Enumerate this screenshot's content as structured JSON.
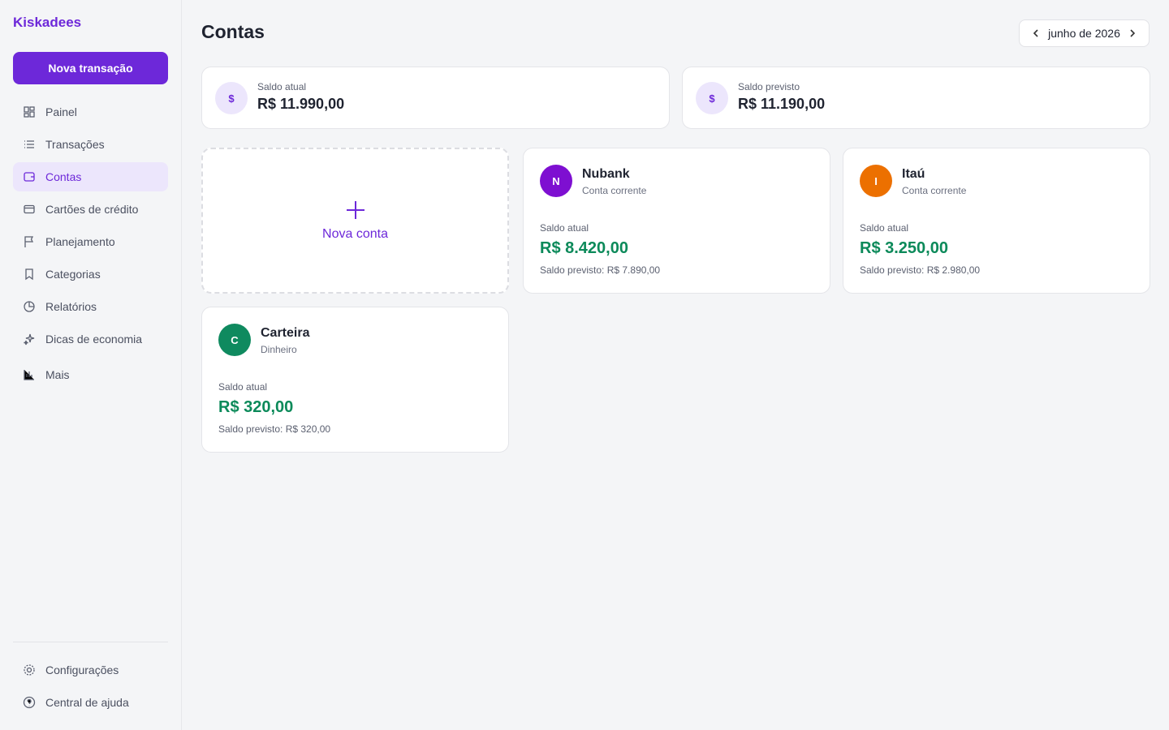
{
  "sidebar": {
    "brand": "Kiskadees",
    "new_button": "Nova transação",
    "nav": [
      "Painel",
      "Transações",
      "Contas",
      "Cartões de crédito",
      "Planejamento",
      "Categorias",
      "Relatórios",
      "Dicas de economia",
      "Mais"
    ],
    "footer_nav": [
      "Configurações",
      "Central de ajuda"
    ]
  },
  "header": {
    "title": "Contas",
    "month": "junho de 2026"
  },
  "summary": [
    {
      "icon": "$",
      "label": "Saldo atual",
      "value": "R$ 11.990,00"
    },
    {
      "icon": "$",
      "label": "Saldo previsto",
      "value": "R$ 11.190,00"
    }
  ],
  "new_account": {
    "label": "Nova conta"
  },
  "accounts": [
    {
      "initial": "N",
      "name": "Nubank",
      "type": "Conta corrente",
      "balance_label": "Saldo atual",
      "balance": "R$ 8.420,00",
      "forecast": "Saldo previsto: R$ 7.890,00",
      "color": "#7e0fd1"
    },
    {
      "initial": "I",
      "name": "Itaú",
      "type": "Conta corrente",
      "balance_label": "Saldo atual",
      "balance": "R$ 3.250,00",
      "forecast": "Saldo previsto: R$ 2.980,00",
      "color": "#ec7000"
    },
    {
      "initial": "C",
      "name": "Carteira",
      "type": "Dinheiro",
      "balance_label": "Saldo atual",
      "balance": "R$ 320,00",
      "forecast": "Saldo previsto: R$ 320,00",
      "color": "#0f8a5f"
    }
  ]
}
